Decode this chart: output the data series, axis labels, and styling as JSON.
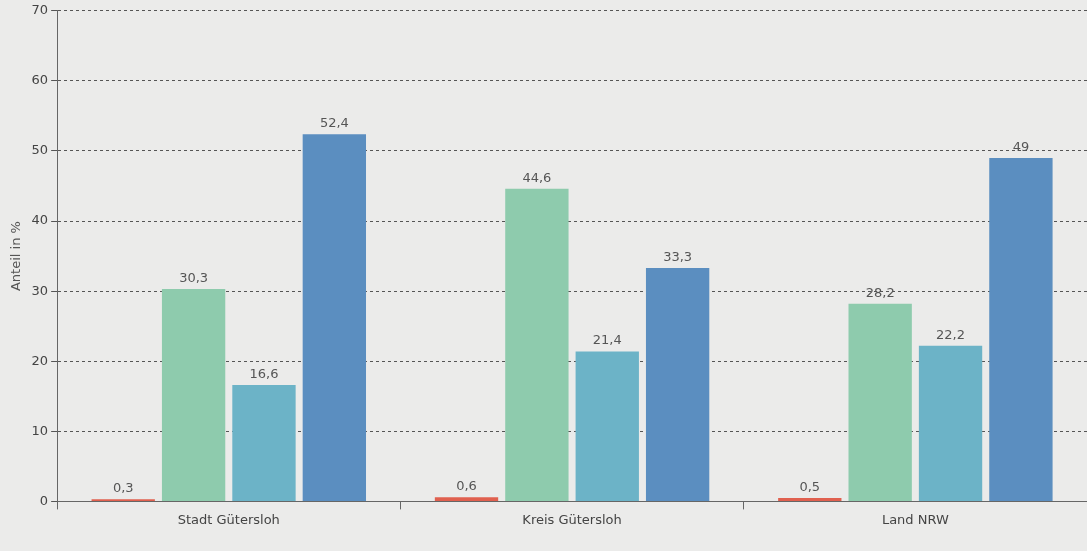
{
  "chart_data": {
    "type": "bar",
    "ylabel": "Anteil in %",
    "categories": [
      "Stadt Gütersloh",
      "Kreis Gütersloh",
      "Land NRW"
    ],
    "series": [
      {
        "color": "#e0604f",
        "values": [
          0.3,
          0.6,
          0.5
        ],
        "value_labels": [
          "0,3",
          "0,6",
          "0,5"
        ]
      },
      {
        "color": "#8ecbad",
        "values": [
          30.3,
          44.6,
          28.2
        ],
        "value_labels": [
          "30,3",
          "44,6",
          "28,2"
        ]
      },
      {
        "color": "#6cb3c7",
        "values": [
          16.6,
          21.4,
          22.2
        ],
        "value_labels": [
          "16,6",
          "21,4",
          "22,2"
        ]
      },
      {
        "color": "#5b8ec0",
        "values": [
          52.4,
          33.3,
          49
        ],
        "value_labels": [
          "52,4",
          "33,3",
          "49"
        ]
      }
    ],
    "ylim": [
      0,
      70
    ],
    "yticks": [
      0,
      10,
      20,
      30,
      40,
      50,
      60,
      70
    ],
    "grid": "y",
    "legend": false
  }
}
